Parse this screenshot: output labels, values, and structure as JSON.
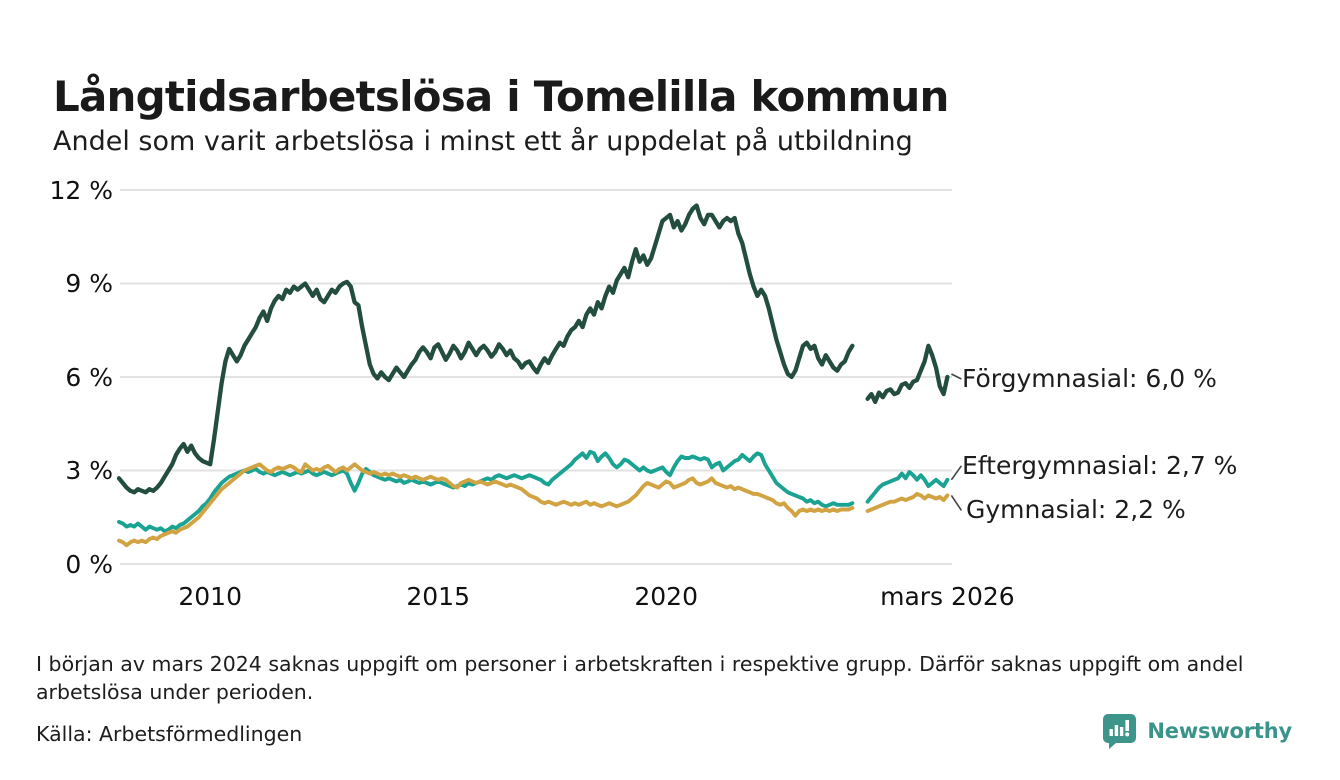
{
  "title": "Långtidsarbetslösa i Tomelilla kommun",
  "subtitle": "Andel som varit arbetslösa i minst ett år uppdelat på utbildning",
  "footnote": "I början av mars 2024 saknas uppgift om personer i arbetskraften i respektive grupp. Därför saknas uppgift om andel arbetslösa under perioden.",
  "source": "Källa: Arbetsförmedlingen",
  "branding": {
    "logo_text": "Newsworthy",
    "logo_color": "#3a948c"
  },
  "colors": {
    "background": "#ffffff",
    "text": "#1d1d1d",
    "gridline": "#e2e2e2",
    "connector": "#444444"
  },
  "chart_data": {
    "type": "line",
    "title": "Långtidsarbetslösa i Tomelilla kommun",
    "subtitle": "Andel som varit arbetslösa i minst ett år uppdelat på utbildning",
    "unit": "%",
    "x_start": "2008-01",
    "x_end": "2026-03",
    "x_frequency": "monthly",
    "ylim": [
      0,
      12
    ],
    "grid": "horizontal",
    "legend_position": "end-of-line-labels",
    "missing_data_period": "mars 2024",
    "yticks": [
      {
        "value": 0,
        "label": "0 %"
      },
      {
        "value": 3,
        "label": "3 %"
      },
      {
        "value": 6,
        "label": "6 %"
      },
      {
        "value": 9,
        "label": "9 %"
      },
      {
        "value": 12,
        "label": "12 %"
      }
    ],
    "xticks": [
      {
        "index": 24,
        "label": "2010"
      },
      {
        "index": 84,
        "label": "2015"
      },
      {
        "index": 144,
        "label": "2020"
      },
      {
        "index": 218,
        "label": "mars 2026"
      }
    ],
    "series": [
      {
        "name": "Förgymnasial",
        "slug": "forgymnasial",
        "end_label": "Förgymnasial: 6,0 %",
        "last_value": "6,0 %",
        "color": "#234d3f",
        "values": [
          2.75,
          2.6,
          2.45,
          2.35,
          2.3,
          2.4,
          2.35,
          2.3,
          2.4,
          2.35,
          2.45,
          2.6,
          2.8,
          3.0,
          3.2,
          3.5,
          3.7,
          3.85,
          3.6,
          3.8,
          3.55,
          3.4,
          3.3,
          3.25,
          3.2,
          4.0,
          4.9,
          5.8,
          6.5,
          6.9,
          6.7,
          6.5,
          6.7,
          7.0,
          7.2,
          7.4,
          7.6,
          7.9,
          8.1,
          7.8,
          8.2,
          8.45,
          8.6,
          8.5,
          8.8,
          8.7,
          8.9,
          8.8,
          8.9,
          9.0,
          8.8,
          8.6,
          8.8,
          8.5,
          8.4,
          8.6,
          8.8,
          8.7,
          8.9,
          9.0,
          9.05,
          8.9,
          8.4,
          8.3,
          7.6,
          7.0,
          6.4,
          6.1,
          5.95,
          6.15,
          6.0,
          5.9,
          6.1,
          6.3,
          6.15,
          6.0,
          6.2,
          6.4,
          6.55,
          6.8,
          6.95,
          6.8,
          6.6,
          6.95,
          7.05,
          6.8,
          6.55,
          6.75,
          7.0,
          6.85,
          6.6,
          6.8,
          7.1,
          6.9,
          6.7,
          6.9,
          7.0,
          6.85,
          6.65,
          6.8,
          7.05,
          6.9,
          6.7,
          6.85,
          6.6,
          6.5,
          6.3,
          6.45,
          6.5,
          6.3,
          6.15,
          6.4,
          6.6,
          6.45,
          6.7,
          6.9,
          7.1,
          7.0,
          7.3,
          7.5,
          7.6,
          7.8,
          7.6,
          8.0,
          8.2,
          8.0,
          8.4,
          8.2,
          8.6,
          8.9,
          8.7,
          9.1,
          9.3,
          9.5,
          9.2,
          9.7,
          10.1,
          9.7,
          9.9,
          9.6,
          9.8,
          10.2,
          10.6,
          11.0,
          11.1,
          11.2,
          10.8,
          11.0,
          10.7,
          10.9,
          11.2,
          11.4,
          11.5,
          11.1,
          10.9,
          11.2,
          11.2,
          11.0,
          10.8,
          11.0,
          11.1,
          11.0,
          11.1,
          10.6,
          10.3,
          9.8,
          9.3,
          8.9,
          8.6,
          8.8,
          8.6,
          8.2,
          7.7,
          7.2,
          6.8,
          6.4,
          6.1,
          6.0,
          6.2,
          6.6,
          7.0,
          7.1,
          6.9,
          7.0,
          6.6,
          6.4,
          6.7,
          6.5,
          6.3,
          6.2,
          6.4,
          6.5,
          6.8,
          7.0,
          null,
          null,
          null,
          5.3,
          5.45,
          5.2,
          5.5,
          5.35,
          5.55,
          5.6,
          5.45,
          5.5,
          5.75,
          5.8,
          5.65,
          5.85,
          5.9,
          6.2,
          6.5,
          7.0,
          6.7,
          6.3,
          5.7,
          5.45,
          6.0
        ]
      },
      {
        "name": "Eftergymnasial",
        "slug": "eftergymnasial",
        "end_label": "Eftergymnasial: 2,7 %",
        "last_value": "2,7 %",
        "color": "#1aa392",
        "values": [
          1.35,
          1.3,
          1.2,
          1.25,
          1.2,
          1.3,
          1.2,
          1.1,
          1.2,
          1.15,
          1.1,
          1.15,
          1.05,
          1.1,
          1.2,
          1.15,
          1.25,
          1.3,
          1.4,
          1.5,
          1.6,
          1.7,
          1.85,
          1.95,
          2.1,
          2.3,
          2.45,
          2.6,
          2.7,
          2.8,
          2.85,
          2.9,
          2.95,
          3.0,
          2.95,
          3.0,
          3.05,
          2.95,
          2.9,
          2.95,
          2.9,
          2.85,
          2.9,
          2.95,
          2.9,
          2.85,
          2.9,
          2.95,
          2.9,
          2.95,
          3.0,
          2.9,
          2.85,
          2.9,
          2.95,
          2.9,
          2.85,
          2.9,
          2.95,
          3.0,
          2.9,
          2.6,
          2.35,
          2.6,
          2.9,
          3.05,
          2.95,
          2.85,
          2.8,
          2.75,
          2.7,
          2.75,
          2.7,
          2.65,
          2.7,
          2.6,
          2.65,
          2.7,
          2.65,
          2.6,
          2.65,
          2.6,
          2.55,
          2.6,
          2.65,
          2.6,
          2.55,
          2.5,
          2.45,
          2.5,
          2.55,
          2.5,
          2.6,
          2.55,
          2.6,
          2.65,
          2.7,
          2.75,
          2.7,
          2.8,
          2.85,
          2.8,
          2.75,
          2.8,
          2.85,
          2.8,
          2.75,
          2.8,
          2.85,
          2.8,
          2.75,
          2.7,
          2.6,
          2.55,
          2.7,
          2.8,
          2.9,
          3.0,
          3.1,
          3.2,
          3.35,
          3.45,
          3.55,
          3.4,
          3.6,
          3.55,
          3.3,
          3.45,
          3.55,
          3.4,
          3.2,
          3.1,
          3.2,
          3.35,
          3.3,
          3.2,
          3.1,
          3.0,
          3.1,
          3.0,
          2.95,
          3.0,
          3.05,
          3.1,
          2.95,
          2.85,
          3.1,
          3.3,
          3.45,
          3.4,
          3.4,
          3.45,
          3.4,
          3.35,
          3.4,
          3.35,
          3.1,
          3.2,
          3.25,
          3.0,
          3.1,
          3.2,
          3.3,
          3.35,
          3.5,
          3.4,
          3.3,
          3.45,
          3.55,
          3.5,
          3.2,
          3.0,
          2.8,
          2.6,
          2.5,
          2.4,
          2.3,
          2.25,
          2.2,
          2.15,
          2.1,
          2.0,
          2.05,
          1.95,
          2.0,
          1.9,
          1.85,
          1.9,
          1.95,
          1.9,
          1.9,
          1.9,
          1.9,
          1.95,
          null,
          null,
          null,
          2.0,
          2.15,
          2.3,
          2.45,
          2.55,
          2.6,
          2.65,
          2.7,
          2.75,
          2.9,
          2.75,
          2.95,
          2.85,
          2.7,
          2.85,
          2.7,
          2.5,
          2.6,
          2.7,
          2.6,
          2.5,
          2.7
        ]
      },
      {
        "name": "Gymnasial",
        "slug": "gymnasial",
        "end_label": "Gymnasial: 2,2 %",
        "last_value": "2,2 %",
        "color": "#d2a343",
        "values": [
          0.75,
          0.7,
          0.6,
          0.7,
          0.75,
          0.7,
          0.75,
          0.7,
          0.8,
          0.85,
          0.8,
          0.9,
          0.95,
          1.0,
          1.05,
          1.0,
          1.1,
          1.15,
          1.2,
          1.3,
          1.4,
          1.5,
          1.65,
          1.8,
          1.95,
          2.1,
          2.25,
          2.4,
          2.5,
          2.6,
          2.7,
          2.8,
          2.9,
          3.0,
          3.05,
          3.1,
          3.15,
          3.2,
          3.1,
          3.0,
          2.95,
          3.05,
          3.1,
          3.05,
          3.1,
          3.15,
          3.1,
          3.0,
          2.95,
          3.2,
          3.1,
          3.0,
          3.05,
          3.0,
          3.1,
          3.15,
          3.05,
          2.95,
          3.05,
          3.1,
          3.0,
          3.1,
          3.2,
          3.1,
          3.0,
          2.95,
          2.9,
          2.95,
          2.9,
          2.85,
          2.9,
          2.85,
          2.9,
          2.85,
          2.8,
          2.85,
          2.8,
          2.75,
          2.8,
          2.75,
          2.7,
          2.75,
          2.8,
          2.75,
          2.7,
          2.75,
          2.7,
          2.6,
          2.5,
          2.45,
          2.6,
          2.65,
          2.7,
          2.65,
          2.6,
          2.65,
          2.6,
          2.55,
          2.6,
          2.65,
          2.6,
          2.55,
          2.5,
          2.55,
          2.5,
          2.45,
          2.4,
          2.3,
          2.2,
          2.15,
          2.1,
          2.0,
          1.95,
          2.0,
          1.95,
          1.9,
          1.95,
          2.0,
          1.95,
          1.9,
          1.95,
          1.9,
          1.95,
          2.0,
          1.9,
          1.95,
          1.9,
          1.85,
          1.9,
          1.95,
          1.9,
          1.85,
          1.9,
          1.95,
          2.0,
          2.1,
          2.2,
          2.35,
          2.5,
          2.6,
          2.55,
          2.5,
          2.45,
          2.55,
          2.65,
          2.6,
          2.45,
          2.5,
          2.55,
          2.6,
          2.7,
          2.75,
          2.6,
          2.55,
          2.6,
          2.65,
          2.75,
          2.6,
          2.55,
          2.5,
          2.45,
          2.5,
          2.4,
          2.45,
          2.4,
          2.35,
          2.3,
          2.25,
          2.25,
          2.2,
          2.15,
          2.1,
          2.05,
          1.95,
          1.9,
          1.95,
          1.8,
          1.7,
          1.55,
          1.7,
          1.75,
          1.7,
          1.75,
          1.7,
          1.75,
          1.7,
          1.75,
          1.7,
          1.75,
          1.7,
          1.75,
          1.75,
          1.75,
          1.8,
          null,
          null,
          null,
          1.7,
          1.75,
          1.8,
          1.85,
          1.9,
          1.95,
          2.0,
          2.0,
          2.05,
          2.1,
          2.05,
          2.1,
          2.15,
          2.25,
          2.2,
          2.1,
          2.2,
          2.15,
          2.1,
          2.15,
          2.05,
          2.2
        ]
      }
    ]
  }
}
